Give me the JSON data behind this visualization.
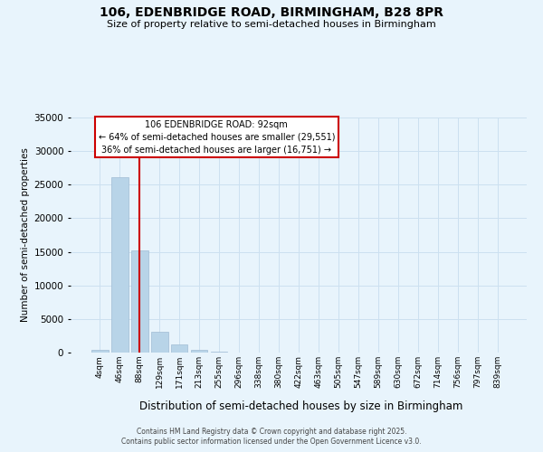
{
  "title1": "106, EDENBRIDGE ROAD, BIRMINGHAM, B28 8PR",
  "title2": "Size of property relative to semi-detached houses in Birmingham",
  "xlabel": "Distribution of semi-detached houses by size in Birmingham",
  "ylabel": "Number of semi-detached properties",
  "categories": [
    "4sqm",
    "46sqm",
    "88sqm",
    "129sqm",
    "171sqm",
    "213sqm",
    "255sqm",
    "296sqm",
    "338sqm",
    "380sqm",
    "422sqm",
    "463sqm",
    "505sqm",
    "547sqm",
    "589sqm",
    "630sqm",
    "672sqm",
    "714sqm",
    "756sqm",
    "797sqm",
    "839sqm"
  ],
  "bar_values": [
    370,
    26100,
    15200,
    3100,
    1200,
    420,
    130,
    0,
    0,
    0,
    0,
    0,
    0,
    0,
    0,
    0,
    0,
    0,
    0,
    0,
    0
  ],
  "bar_color": "#b8d4e8",
  "bar_edge_color": "#a0bcd4",
  "grid_color": "#cce0f0",
  "background_color": "#e8f4fc",
  "vline_x": 2,
  "vline_color": "#cc0000",
  "annotation_title": "106 EDENBRIDGE ROAD: 92sqm",
  "annotation_line2": "← 64% of semi-detached houses are smaller (29,551)",
  "annotation_line3": "36% of semi-detached houses are larger (16,751) →",
  "annotation_box_color": "#ffffff",
  "annotation_box_edge": "#cc0000",
  "ylim": [
    0,
    35000
  ],
  "yticks": [
    0,
    5000,
    10000,
    15000,
    20000,
    25000,
    30000,
    35000
  ],
  "footer1": "Contains HM Land Registry data © Crown copyright and database right 2025.",
  "footer2": "Contains public sector information licensed under the Open Government Licence v3.0."
}
